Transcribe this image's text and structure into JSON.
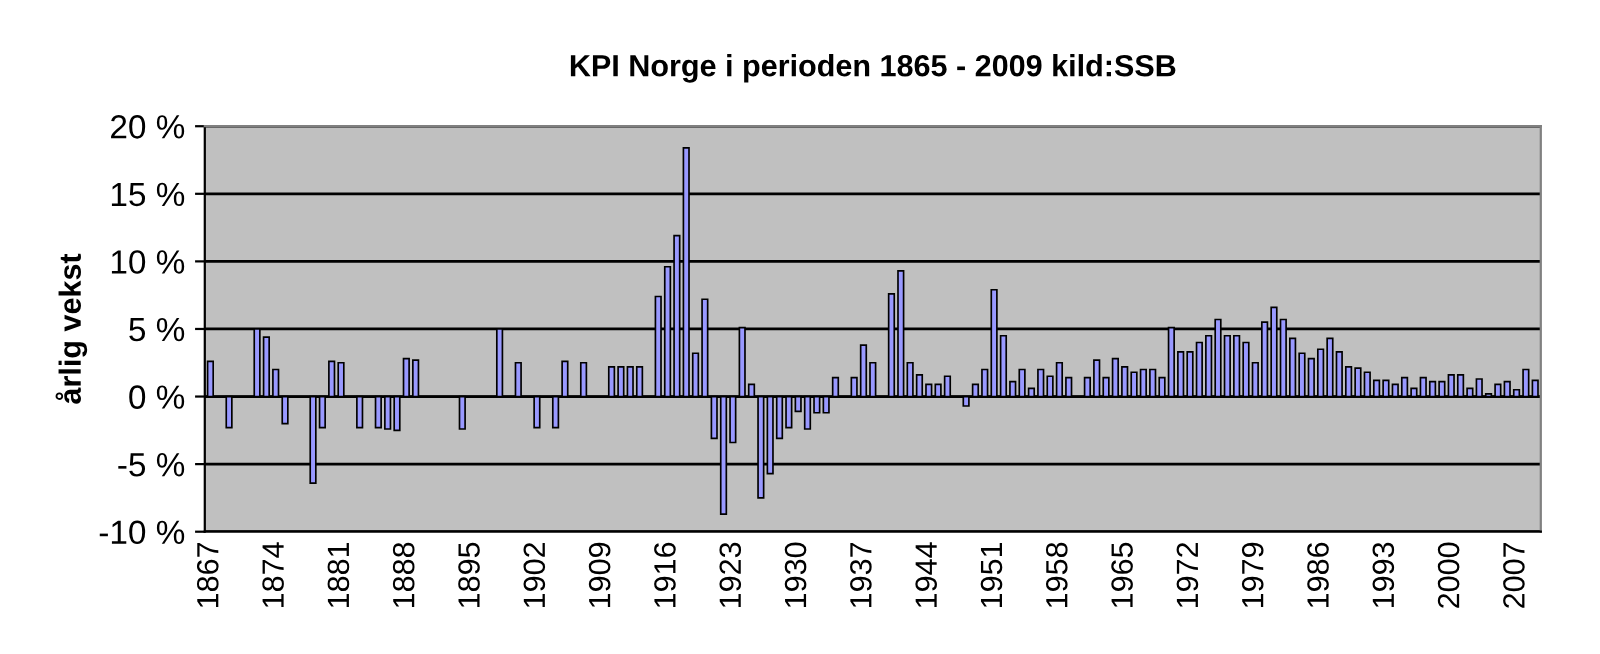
{
  "chart_data": {
    "type": "bar",
    "title": "KPI Norge i perioden 1865 - 2009 kild:SSB",
    "ylabel": "årlig vekst",
    "categories": [
      "1867",
      null,
      null,
      null,
      null,
      null,
      null,
      "1874",
      null,
      null,
      null,
      null,
      null,
      null,
      "1881",
      null,
      null,
      null,
      null,
      null,
      null,
      "1888",
      null,
      null,
      null,
      null,
      null,
      null,
      "1895",
      null,
      null,
      null,
      null,
      null,
      null,
      "1902",
      null,
      null,
      null,
      null,
      null,
      null,
      "1909",
      null,
      null,
      null,
      null,
      null,
      null,
      "1916",
      null,
      null,
      null,
      null,
      null,
      null,
      "1923",
      null,
      null,
      null,
      null,
      null,
      null,
      "1930",
      null,
      null,
      null,
      null,
      null,
      null,
      "1937",
      null,
      null,
      null,
      null,
      null,
      null,
      "1944",
      null,
      null,
      null,
      null,
      null,
      null,
      "1951",
      null,
      null,
      null,
      null,
      null,
      null,
      "1958",
      null,
      null,
      null,
      null,
      null,
      null,
      "1965",
      null,
      null,
      null,
      null,
      null,
      null,
      "1972",
      null,
      null,
      null,
      null,
      null,
      null,
      "1979",
      null,
      null,
      null,
      null,
      null,
      null,
      "1986",
      null,
      null,
      null,
      null,
      null,
      null,
      "1993",
      null,
      null,
      null,
      null,
      null,
      null,
      "2000",
      null,
      null,
      null,
      null,
      null,
      null,
      "2007",
      null,
      null
    ],
    "series": [
      {
        "color": "#9999ff",
        "values": [
          2.6,
          null,
          -2.3,
          null,
          null,
          5.0,
          4.4,
          2.0,
          -2.0,
          null,
          null,
          -6.4,
          -2.3,
          2.6,
          2.5,
          null,
          -2.3,
          null,
          -2.3,
          -2.4,
          -2.5,
          2.8,
          2.7,
          null,
          null,
          null,
          null,
          -2.4,
          null,
          null,
          null,
          5.0,
          null,
          2.5,
          null,
          -2.3,
          null,
          -2.3,
          2.6,
          null,
          2.5,
          null,
          null,
          2.2,
          2.2,
          2.2,
          2.2,
          null,
          7.4,
          9.6,
          11.9,
          18.4,
          3.2,
          7.2,
          -3.1,
          -8.7,
          -3.4,
          5.1,
          0.9,
          -7.5,
          -5.7,
          -3.1,
          -2.3,
          -1.1,
          -2.4,
          -1.2,
          -1.2,
          1.4,
          null,
          1.4,
          3.8,
          2.5,
          null,
          7.6,
          9.3,
          2.5,
          1.6,
          0.9,
          0.9,
          1.5,
          null,
          -0.7,
          0.9,
          2.0,
          7.9,
          4.5,
          1.1,
          2.0,
          0.6,
          2.0,
          1.5,
          2.5,
          1.4,
          null,
          1.4,
          2.7,
          1.4,
          2.8,
          2.2,
          1.8,
          2.0,
          2.0,
          1.4,
          5.1,
          3.3,
          3.3,
          4.0,
          4.5,
          5.7,
          4.5,
          4.5,
          4.0,
          2.5,
          5.5,
          6.6,
          5.7,
          4.3,
          3.2,
          2.8,
          3.5,
          4.3,
          3.3,
          2.2,
          2.1,
          1.8,
          1.2,
          1.2,
          0.9,
          1.4,
          0.6,
          1.4,
          1.1,
          1.1,
          1.6,
          1.6,
          0.6,
          1.3,
          0.2,
          0.9,
          1.1,
          0.5,
          2.0,
          1.2
        ]
      }
    ],
    "ylim": [
      -10,
      20
    ],
    "yticks": [
      {
        "value": -10,
        "label": "-10 %"
      },
      {
        "value": -5,
        "label": "-5 %"
      },
      {
        "value": 0,
        "label": "0 %"
      },
      {
        "value": 5,
        "label": "5 %"
      },
      {
        "value": 10,
        "label": "10 %"
      },
      {
        "value": 15,
        "label": "15 %"
      },
      {
        "value": 20,
        "label": "20 %"
      }
    ],
    "grid": "y",
    "legend": false
  }
}
